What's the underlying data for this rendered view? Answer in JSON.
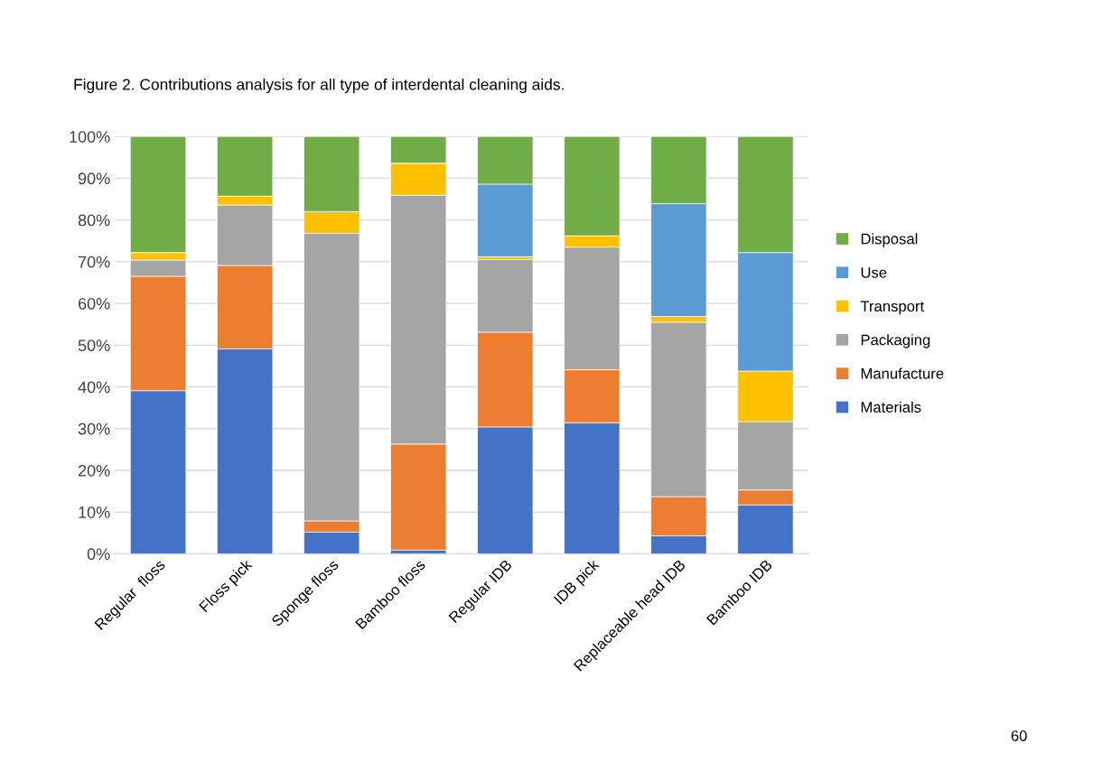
{
  "chart_data": {
    "type": "bar",
    "title": "Figure 2. Contributions analysis for all type of interdental cleaning aids.",
    "categories": [
      "Regular  floss",
      "Floss pick",
      "Sponge floss",
      "Bamboo floss",
      "Regular IDB",
      "IDB pick",
      "Replaceable head IDB",
      "Bamboo IDB"
    ],
    "stacked": true,
    "series": [
      {
        "name": "Materials",
        "color": "#4472c4",
        "values": [
          39.1,
          49.1,
          5.2,
          0.9,
          30.4,
          31.4,
          4.3,
          11.7
        ]
      },
      {
        "name": "Manufacture",
        "color": "#ed7d31",
        "values": [
          27.4,
          20.0,
          2.7,
          25.4,
          22.7,
          12.7,
          9.4,
          3.6
        ]
      },
      {
        "name": "Packaging",
        "color": "#a5a5a5",
        "values": [
          3.9,
          14.5,
          68.9,
          59.6,
          17.4,
          29.4,
          41.8,
          16.4
        ]
      },
      {
        "name": "Transport",
        "color": "#ffc000",
        "values": [
          1.8,
          2.1,
          5.2,
          7.7,
          0.7,
          2.7,
          1.4,
          12.1
        ]
      },
      {
        "name": "Use",
        "color": "#5b9bd5",
        "values": [
          0,
          0,
          0,
          0,
          17.4,
          0,
          27.0,
          28.4
        ]
      },
      {
        "name": "Disposal",
        "color": "#70ad47",
        "values": [
          27.8,
          14.3,
          18.0,
          6.4,
          11.4,
          23.8,
          16.1,
          27.8
        ]
      }
    ],
    "ylim": [
      0,
      100
    ],
    "yticks": [
      {
        "value": 0,
        "label": "0%"
      },
      {
        "value": 10,
        "label": "10%"
      },
      {
        "value": 20,
        "label": "20%"
      },
      {
        "value": 30,
        "label": "30%"
      },
      {
        "value": 40,
        "label": "40%"
      },
      {
        "value": 50,
        "label": "50%"
      },
      {
        "value": 60,
        "label": "60%"
      },
      {
        "value": 70,
        "label": "70%"
      },
      {
        "value": 80,
        "label": "80%"
      },
      {
        "value": 90,
        "label": "90%"
      },
      {
        "value": 100,
        "label": "100%"
      }
    ],
    "grid": "y",
    "legend": "right",
    "annotations": [
      "60"
    ]
  }
}
